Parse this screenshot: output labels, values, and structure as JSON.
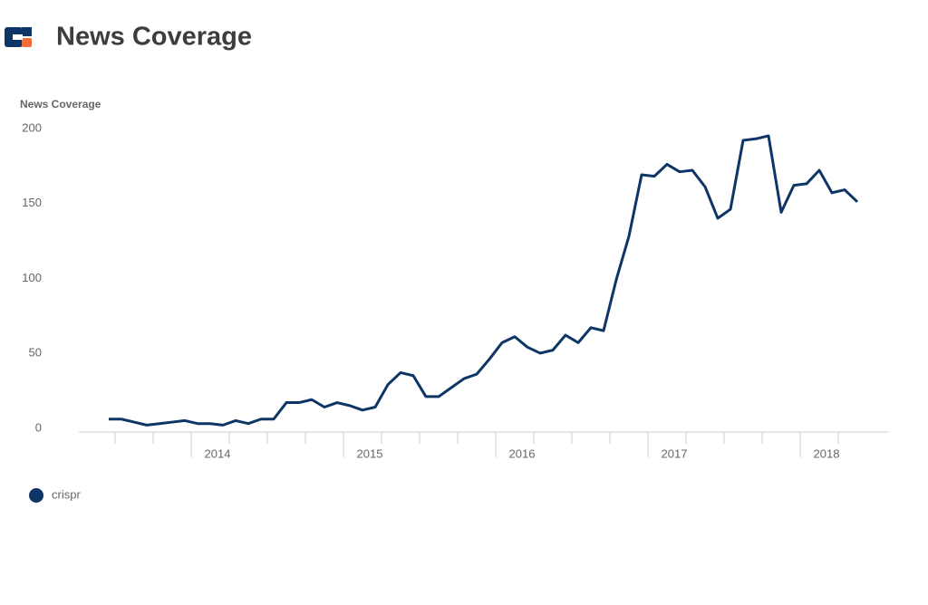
{
  "chart_data": {
    "type": "line",
    "title": "News Coverage",
    "y_label": "News Coverage",
    "categories": [
      null,
      null,
      null,
      null,
      null,
      null,
      null,
      null,
      null,
      "2014",
      null,
      null,
      null,
      null,
      null,
      null,
      null,
      null,
      null,
      null,
      null,
      "2015",
      null,
      null,
      null,
      null,
      null,
      null,
      null,
      null,
      null,
      null,
      null,
      "2016",
      null,
      null,
      null,
      null,
      null,
      null,
      null,
      null,
      null,
      null,
      null,
      "2017",
      null,
      null,
      null,
      null,
      null,
      null,
      null,
      null,
      null,
      null,
      null,
      "2018",
      null,
      null
    ],
    "series": [
      {
        "name": "crispr",
        "color": "#0d3566",
        "values": [
          8,
          8,
          6,
          4,
          5,
          6,
          7,
          5,
          5,
          4,
          7,
          5,
          8,
          8,
          19,
          19,
          21,
          16,
          19,
          17,
          14,
          16,
          31,
          39,
          37,
          23,
          23,
          29,
          35,
          38,
          48,
          59,
          63,
          56,
          52,
          54,
          64,
          59,
          69,
          67,
          101,
          130,
          171,
          170,
          178,
          173,
          174,
          163,
          142,
          148,
          194,
          195,
          197,
          146,
          164,
          165,
          174,
          159,
          161,
          153
        ]
      }
    ],
    "ylim": [
      0,
      200
    ],
    "yticks": [
      0,
      50,
      100,
      150,
      200
    ],
    "legend": "bottom-left"
  }
}
